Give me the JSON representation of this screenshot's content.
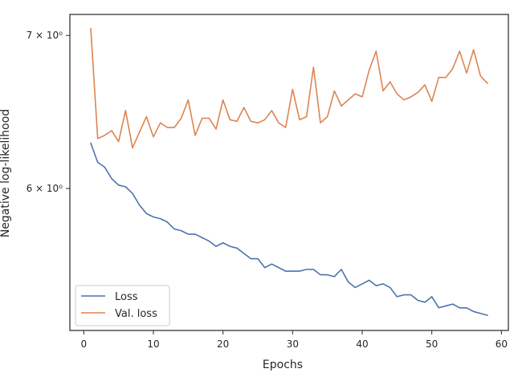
{
  "chart_data": {
    "type": "line",
    "title": "",
    "xlabel": "Epochs",
    "ylabel": "Negative log-likelihood",
    "yscale": "log",
    "xlim": [
      -2.0,
      61.0
    ],
    "ylim": [
      5.2,
      7.15
    ],
    "xticks": [
      0,
      10,
      20,
      30,
      40,
      50,
      60
    ],
    "yticks": [
      {
        "value": 6,
        "label": "6 × 10⁰"
      },
      {
        "value": 7,
        "label": "7 × 10⁰"
      }
    ],
    "grid": false,
    "legend_position": "lower left",
    "x": [
      1,
      2,
      3,
      4,
      5,
      6,
      7,
      8,
      9,
      10,
      11,
      12,
      13,
      14,
      15,
      16,
      17,
      18,
      19,
      20,
      21,
      22,
      23,
      24,
      25,
      26,
      27,
      28,
      29,
      30,
      31,
      32,
      33,
      34,
      35,
      36,
      37,
      38,
      39,
      40,
      41,
      42,
      43,
      44,
      45,
      46,
      47,
      48,
      49,
      50,
      51,
      52,
      53,
      54,
      55,
      56,
      57,
      58
    ],
    "series": [
      {
        "name": "Loss",
        "color": "#4c72b0",
        "values": [
          6.28,
          6.16,
          6.13,
          6.06,
          6.02,
          6.01,
          5.97,
          5.9,
          5.85,
          5.83,
          5.82,
          5.8,
          5.76,
          5.75,
          5.73,
          5.73,
          5.71,
          5.69,
          5.66,
          5.68,
          5.66,
          5.65,
          5.62,
          5.59,
          5.59,
          5.54,
          5.56,
          5.54,
          5.52,
          5.52,
          5.52,
          5.53,
          5.53,
          5.5,
          5.5,
          5.49,
          5.53,
          5.46,
          5.43,
          5.45,
          5.47,
          5.44,
          5.45,
          5.43,
          5.38,
          5.39,
          5.39,
          5.36,
          5.35,
          5.38,
          5.32,
          5.33,
          5.34,
          5.32,
          5.32,
          5.3,
          5.29,
          5.28
        ]
      },
      {
        "name": "Val. loss",
        "color": "#dd8452",
        "values": [
          7.05,
          6.31,
          6.33,
          6.36,
          6.29,
          6.49,
          6.25,
          6.35,
          6.45,
          6.32,
          6.41,
          6.38,
          6.38,
          6.44,
          6.56,
          6.33,
          6.44,
          6.44,
          6.37,
          6.56,
          6.43,
          6.42,
          6.51,
          6.42,
          6.41,
          6.43,
          6.49,
          6.41,
          6.38,
          6.63,
          6.43,
          6.45,
          6.78,
          6.41,
          6.45,
          6.62,
          6.52,
          6.56,
          6.6,
          6.58,
          6.76,
          6.89,
          6.62,
          6.68,
          6.6,
          6.56,
          6.58,
          6.61,
          6.66,
          6.55,
          6.71,
          6.71,
          6.77,
          6.89,
          6.74,
          6.9,
          6.72,
          6.67
        ]
      }
    ]
  }
}
